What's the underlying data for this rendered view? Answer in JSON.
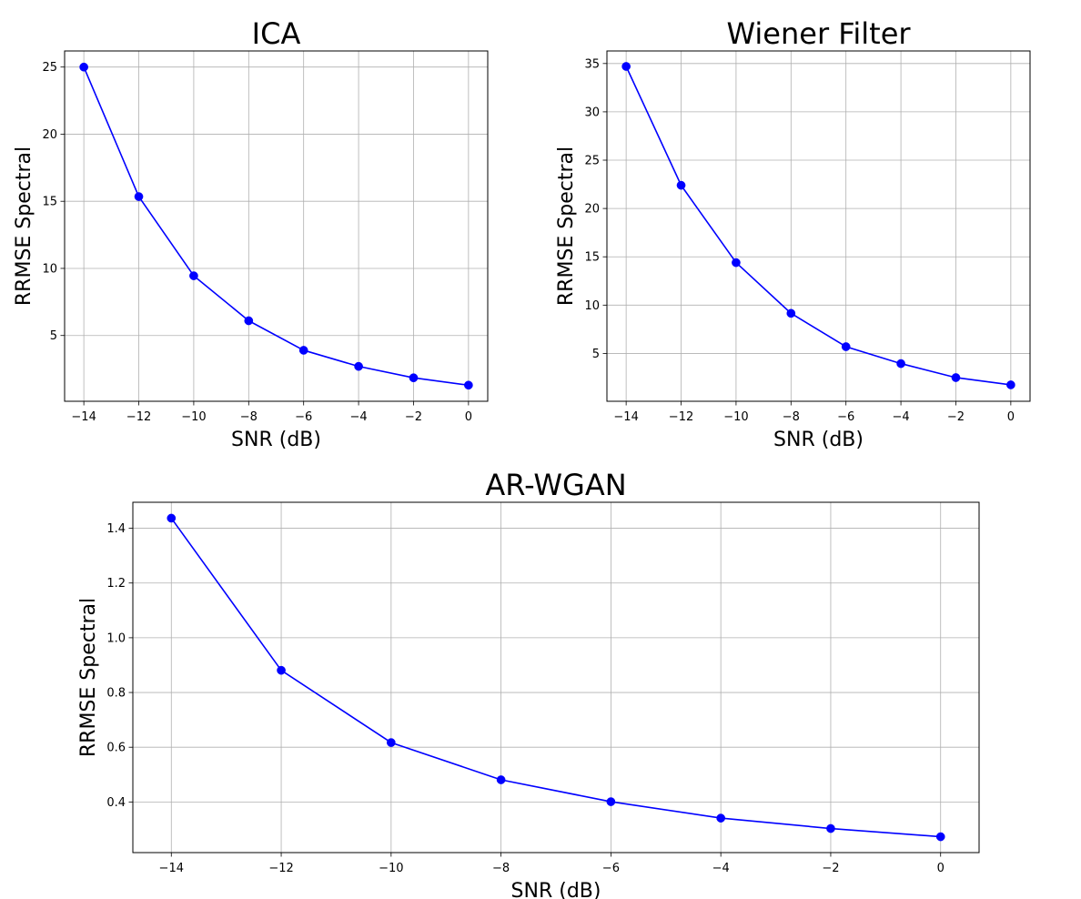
{
  "chart_data": [
    {
      "type": "line",
      "title": "ICA",
      "xlabel": "SNR (dB)",
      "ylabel": "RRMSE Spectral",
      "x": [
        -14,
        -12,
        -10,
        -8,
        -6,
        -4,
        -2,
        0
      ],
      "series": [
        {
          "values": [
            25.0,
            15.35,
            9.45,
            6.1,
            3.9,
            2.7,
            1.85,
            1.3
          ]
        }
      ],
      "xlim": [
        -14.7,
        0.7
      ],
      "ylim": [
        0.1,
        26.2
      ],
      "xticks": [
        -14,
        -12,
        -10,
        -8,
        -6,
        -4,
        -2,
        0
      ],
      "xtick_labels": [
        "−14",
        "−12",
        "−10",
        "−8",
        "−6",
        "−4",
        "−2",
        "0"
      ],
      "yticks": [
        5,
        10,
        15,
        20,
        25
      ],
      "ytick_labels": [
        "5",
        "10",
        "15",
        "20",
        "25"
      ],
      "grid": true,
      "line_color": "#0000ff"
    },
    {
      "type": "line",
      "title": "Wiener Filter",
      "xlabel": "SNR (dB)",
      "ylabel": "RRMSE Spectral",
      "x": [
        -14,
        -12,
        -10,
        -8,
        -6,
        -4,
        -2,
        0
      ],
      "series": [
        {
          "values": [
            34.7,
            22.4,
            14.4,
            9.15,
            5.7,
            3.95,
            2.5,
            1.75
          ]
        }
      ],
      "xlim": [
        -14.7,
        0.7
      ],
      "ylim": [
        0.05,
        36.3
      ],
      "xticks": [
        -14,
        -12,
        -10,
        -8,
        -6,
        -4,
        -2,
        0
      ],
      "xtick_labels": [
        "−14",
        "−12",
        "−10",
        "−8",
        "−6",
        "−4",
        "−2",
        "0"
      ],
      "yticks": [
        5,
        10,
        15,
        20,
        25,
        30,
        35
      ],
      "ytick_labels": [
        "5",
        "10",
        "15",
        "20",
        "25",
        "30",
        "35"
      ],
      "grid": true,
      "line_color": "#0000ff"
    },
    {
      "type": "line",
      "title": "AR-WGAN",
      "xlabel": "SNR (dB)",
      "ylabel": "RRMSE Spectral",
      "x": [
        -14,
        -12,
        -10,
        -8,
        -6,
        -4,
        -2,
        0
      ],
      "series": [
        {
          "values": [
            1.437,
            0.881,
            0.617,
            0.481,
            0.401,
            0.341,
            0.303,
            0.273
          ]
        }
      ],
      "xlim": [
        -14.7,
        0.7
      ],
      "ylim": [
        0.215,
        1.495
      ],
      "xticks": [
        -14,
        -12,
        -10,
        -8,
        -6,
        -4,
        -2,
        0
      ],
      "xtick_labels": [
        "−14",
        "−12",
        "−10",
        "−8",
        "−6",
        "−4",
        "−2",
        "0"
      ],
      "yticks": [
        0.4,
        0.6,
        0.8,
        1.0,
        1.2,
        1.4
      ],
      "ytick_labels": [
        "0.4",
        "0.6",
        "0.8",
        "1.0",
        "1.2",
        "1.4"
      ],
      "grid": true,
      "line_color": "#0000ff"
    }
  ]
}
